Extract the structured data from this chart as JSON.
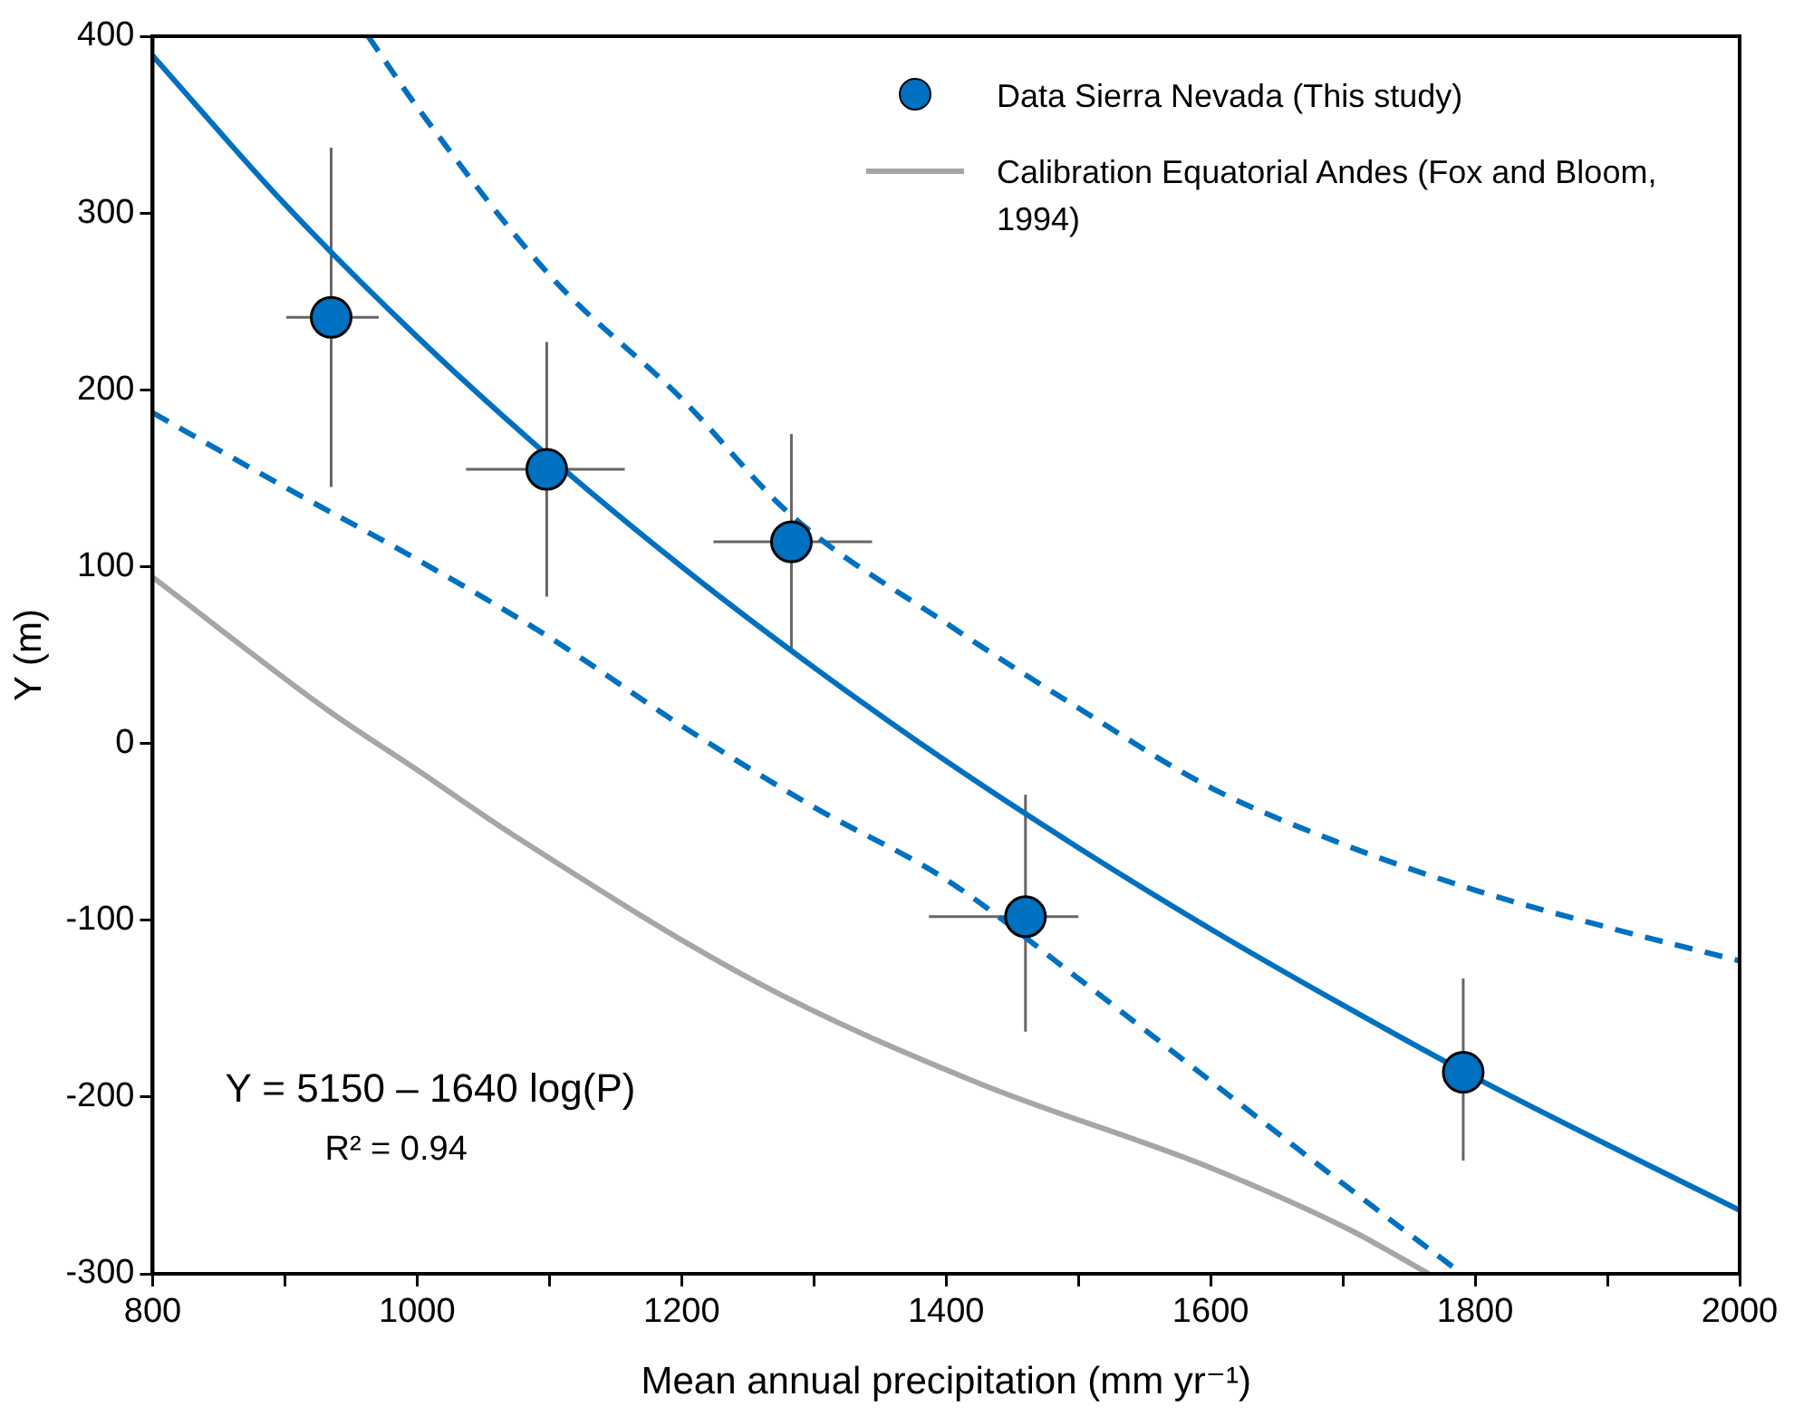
{
  "chart_data": {
    "type": "scatter",
    "xlabel": "Mean annual precipitation (mm yr⁻¹)",
    "ylabel": "Y (m)",
    "xlim": [
      800,
      2000
    ],
    "xticks": [
      800,
      {
        "value": 900,
        "label": null
      },
      1000,
      {
        "value": 1100,
        "label": null
      },
      1200,
      {
        "value": 1300,
        "label": null
      },
      1400,
      {
        "value": 1500,
        "label": null
      },
      1600,
      {
        "value": 1700,
        "label": null
      },
      1800,
      {
        "value": 1900,
        "label": null
      },
      2000
    ],
    "ylim": [
      -300,
      400
    ],
    "yticks": [
      -300,
      -200,
      -100,
      0,
      100,
      200,
      300,
      400
    ],
    "grid": false,
    "legend": "top right",
    "series": [
      {
        "name": "Data Sierra Nevada (This study)",
        "type": "scatter",
        "marker": "circle",
        "color": "#0070c0",
        "x": [
          935,
          1098,
          1283,
          1460,
          1791
        ],
        "values": [
          241,
          155,
          114,
          -98,
          -186
        ],
        "errors": [
          [
            145,
            337
          ],
          [
            83,
            227
          ],
          [
            51,
            175
          ],
          [
            -163,
            -29
          ],
          [
            -236,
            -133
          ]
        ],
        "xerrors": [
          [
            901,
            971
          ],
          [
            1037,
            1157
          ],
          [
            1224,
            1344
          ],
          [
            1387,
            1500
          ],
          null
        ]
      },
      {
        "name": "Calibration Equatorial Andes (Fox and Bloom, 1994)",
        "type": "line",
        "marker": "none",
        "line_style": "solid",
        "color": "#a6a6a6",
        "x": [
          800,
          932,
          1000,
          1073,
          1259,
          1424,
          1600,
          1705,
          1765
        ],
        "values": [
          94,
          19,
          -15,
          -52,
          -136,
          -192,
          -240,
          -275,
          -300
        ]
      },
      {
        "type": "line",
        "marker": "none",
        "line_style": "solid",
        "color": "#0070c0",
        "x": [
          800,
          900,
          1000,
          1100,
          1200,
          1300,
          1400,
          1500,
          1600,
          1700,
          1800,
          1900,
          2000
        ],
        "values": [
          389,
          305,
          230,
          162,
          100,
          43,
          -10,
          -59,
          -105,
          -148,
          -189,
          -227,
          -264
        ]
      },
      {
        "type": "line",
        "marker": "none",
        "line_style": "dashed",
        "color": "#0070c0",
        "x": [
          963,
          1000,
          1100,
          1200,
          1283,
          1400,
          1500,
          1600,
          1700,
          1800,
          1900,
          2000
        ],
        "values": [
          400,
          360,
          265,
          195,
          129,
          68,
          20,
          -25,
          -57,
          -83,
          -104,
          -123
        ]
      },
      {
        "type": "line",
        "marker": "none",
        "line_style": "dashed",
        "color": "#0070c0",
        "x": [
          800,
          900,
          1000,
          1100,
          1200,
          1300,
          1400,
          1500,
          1600,
          1700,
          1790
        ],
        "values": [
          187,
          145,
          104,
          60,
          10,
          -36,
          -77,
          -133,
          -191,
          -249,
          -300
        ]
      }
    ],
    "annotations": [
      "Y = 5150 – 1640 log(P)",
      "R² = 0.94"
    ]
  }
}
